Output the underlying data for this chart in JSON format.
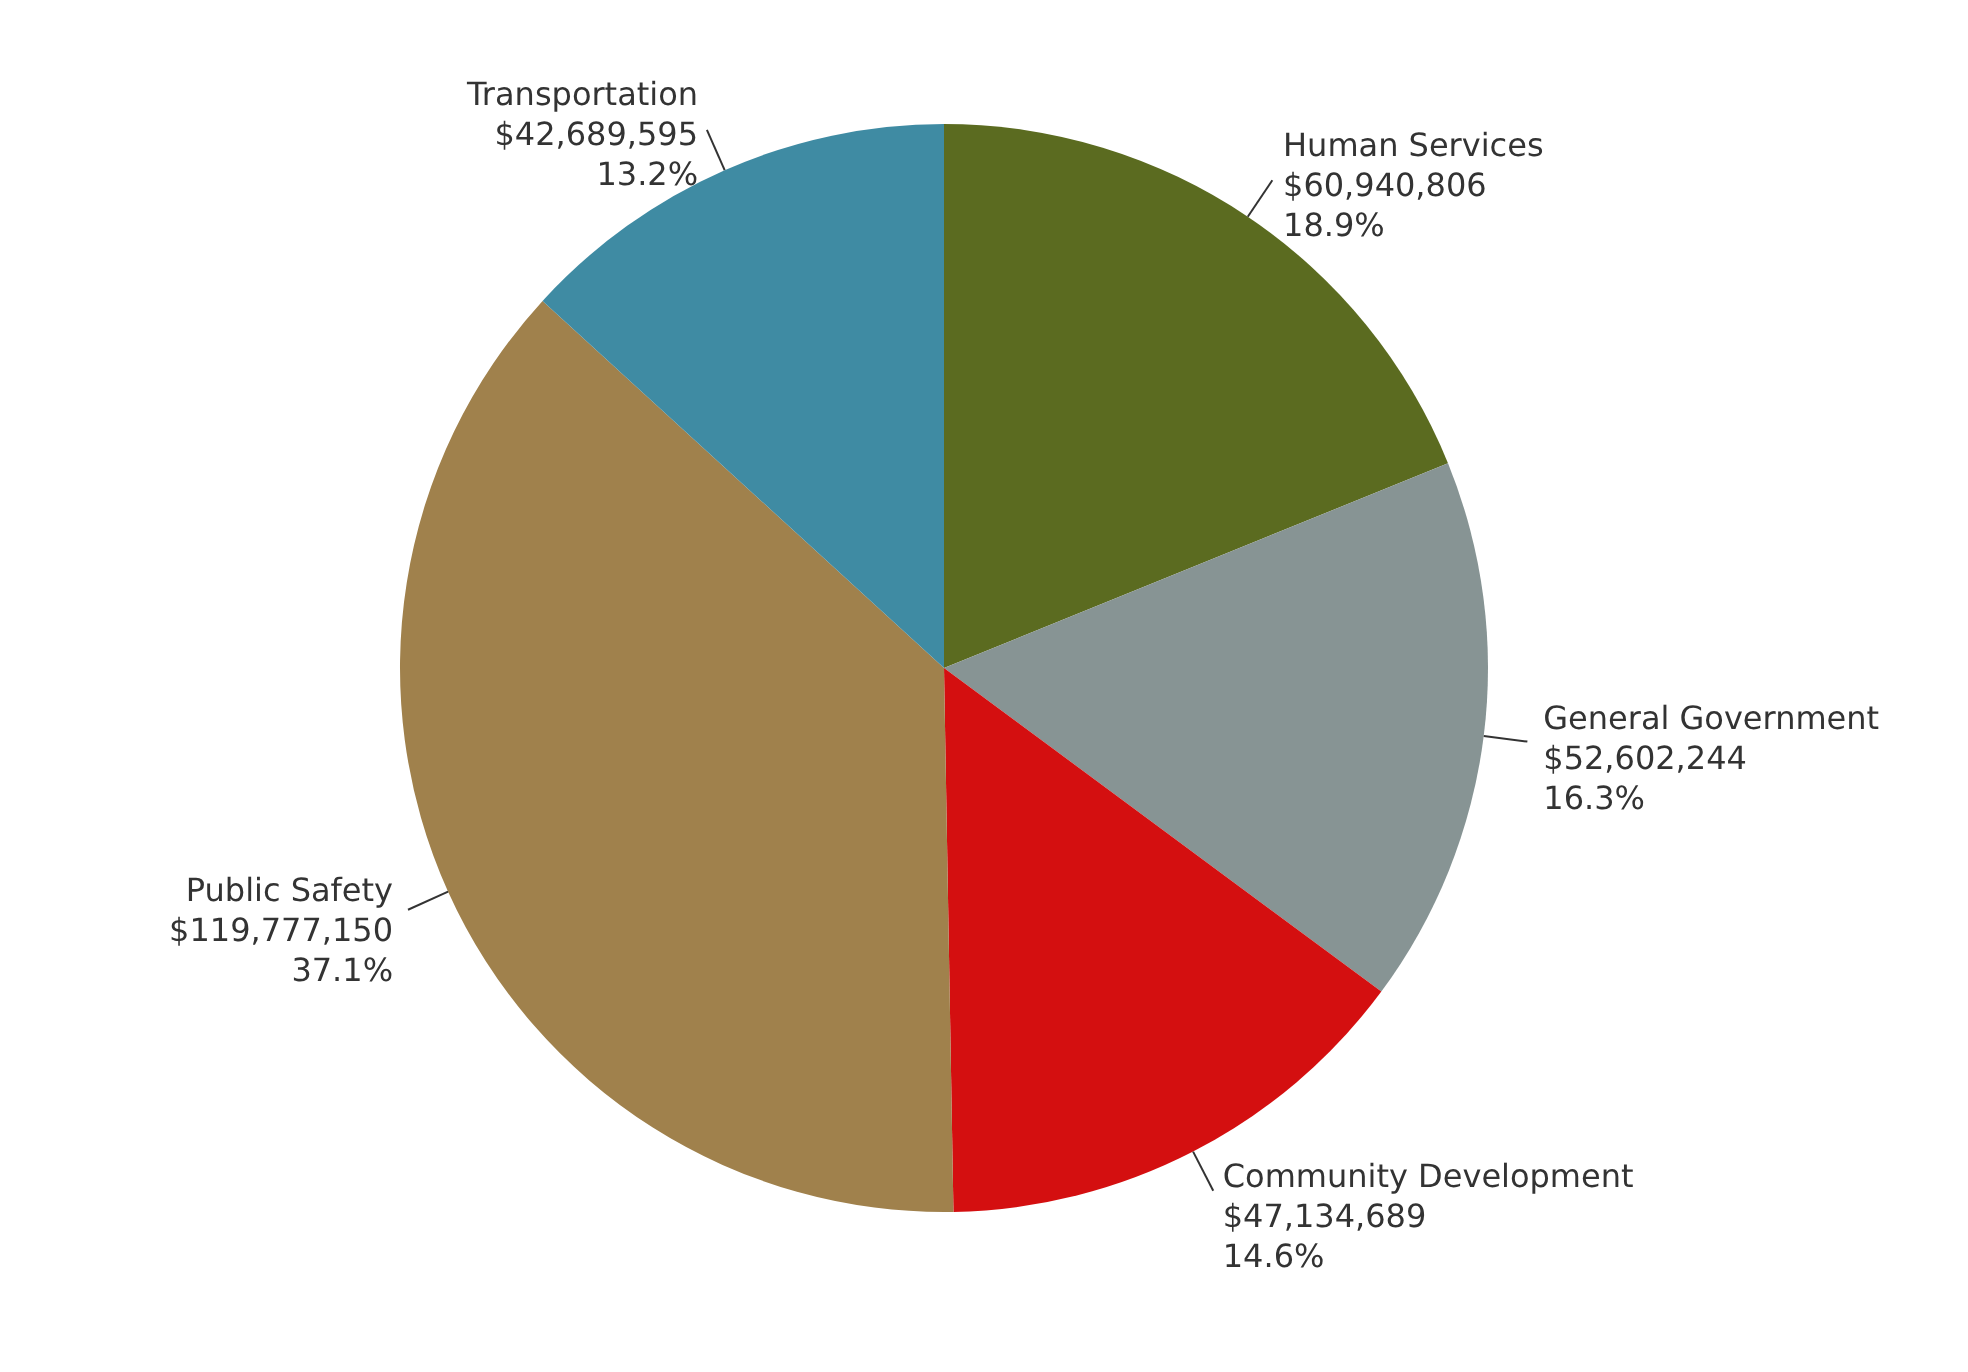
{
  "chart_data": {
    "type": "pie",
    "categories": [
      "Human Services",
      "General Government",
      "Community Development",
      "Public Safety",
      "Transportation"
    ],
    "values": [
      60940806,
      52602244,
      47134689,
      119777150,
      42689595
    ],
    "colors": [
      "#5b6b20",
      "#879494",
      "#d40f10",
      "#a0814c",
      "#3f8ba3"
    ],
    "value_labels": [
      "$60,940,806\n18.9%",
      "$52,602,244\n16.3%",
      "$47,134,689\n14.6%",
      "$119,777,150\n37.1%",
      "$42,689,595\n13.2%"
    ]
  }
}
